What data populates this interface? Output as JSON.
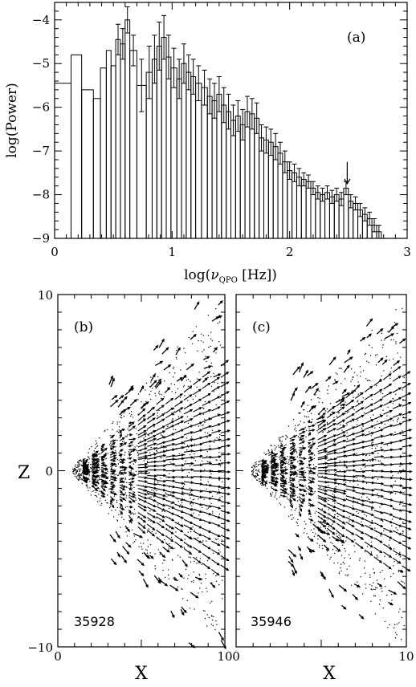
{
  "chart_data": [
    {
      "type": "bar",
      "style": "histogram-with-error-bars",
      "panel_label": "(a)",
      "title": "",
      "xlabel": "log(ν_QPO [Hz])",
      "xlabel_main": "log(",
      "xlabel_nu": "ν",
      "xlabel_sub": "QPO",
      "xlabel_tail": " [Hz])",
      "ylabel": "log(Power)",
      "xlim": [
        0,
        3
      ],
      "ylim": [
        -9,
        -3.6
      ],
      "xticks": [
        "0",
        "1",
        "2",
        "3"
      ],
      "yticks": [
        "−4",
        "−5",
        "−6",
        "−7",
        "−8",
        "−9"
      ],
      "grid": false,
      "annotation": "downward arrow at x≈2.49 marking the QPO peak",
      "arrow_x": 2.49,
      "arrow_y_top": -7.25,
      "arrow_y_tip": -7.75,
      "bins": {
        "edges": [
          0,
          0.14,
          0.23,
          0.33,
          0.39,
          0.44,
          0.48,
          0.52,
          0.56,
          0.6,
          0.64,
          0.7,
          0.78,
          0.83,
          0.87,
          0.91,
          0.95,
          0.99,
          1.04,
          1.08,
          1.12,
          1.16,
          1.2,
          1.25,
          1.3,
          1.34,
          1.38,
          1.42,
          1.46,
          1.5,
          1.54,
          1.58,
          1.62,
          1.66,
          1.7,
          1.74,
          1.78,
          1.82,
          1.86,
          1.9,
          1.94,
          1.98,
          2.02,
          2.06,
          2.1,
          2.14,
          2.18,
          2.22,
          2.26,
          2.3,
          2.34,
          2.38,
          2.42,
          2.46,
          2.5,
          2.54,
          2.58,
          2.62,
          2.66,
          2.7,
          2.74,
          2.78
        ],
        "values": [
          -5.45,
          -4.8,
          -5.6,
          -5.8,
          -5.1,
          -4.7,
          -5.05,
          -4.45,
          -4.55,
          -4.0,
          -4.7,
          -5.5,
          -5.2,
          -4.9,
          -4.6,
          -4.4,
          -4.85,
          -5.1,
          -5.35,
          -5.0,
          -5.2,
          -5.3,
          -5.45,
          -5.55,
          -5.75,
          -5.85,
          -5.7,
          -5.95,
          -6.1,
          -6.3,
          -6.2,
          -6.4,
          -6.1,
          -6.15,
          -6.25,
          -6.7,
          -6.75,
          -6.8,
          -6.9,
          -7.05,
          -7.25,
          -7.45,
          -7.5,
          -7.6,
          -7.65,
          -7.7,
          -7.85,
          -7.95,
          -8.0,
          -7.95,
          -8.05,
          -8.0,
          -8.1,
          -7.85,
          -8.15,
          -8.2,
          -8.35,
          -8.45,
          -8.55,
          -8.7,
          -8.85
        ],
        "errors": [
          0.0,
          0.0,
          0.0,
          0.0,
          0.0,
          0.0,
          0.0,
          0.35,
          0.35,
          0.3,
          0.35,
          0.6,
          0.6,
          0.55,
          0.55,
          0.5,
          0.5,
          0.45,
          0.45,
          0.45,
          0.4,
          0.4,
          0.4,
          0.4,
          0.4,
          0.4,
          0.4,
          0.4,
          0.4,
          0.35,
          0.35,
          0.35,
          0.35,
          0.35,
          0.35,
          0.3,
          0.3,
          0.3,
          0.3,
          0.25,
          0.25,
          0.2,
          0.2,
          0.2,
          0.15,
          0.15,
          0.15,
          0.15,
          0.15,
          0.15,
          0.15,
          0.15,
          0.15,
          0.15,
          0.15,
          0.15,
          0.15,
          0.15,
          0.15,
          0.15,
          0.15
        ]
      }
    },
    {
      "type": "scatter",
      "style": "velocity-vector-field",
      "panel_label": "(b)",
      "run_label": "35928",
      "xlabel": "X",
      "ylabel": "Z",
      "xlim": [
        0,
        10
      ],
      "ylim": [
        -10,
        10
      ],
      "xticks": [
        "0",
        "10"
      ],
      "yticks": [
        "10",
        "0",
        "−10"
      ],
      "seed": 35928,
      "hump": 1.4
    },
    {
      "type": "scatter",
      "style": "velocity-vector-field",
      "panel_label": "(c)",
      "run_label": "35946",
      "xlabel": "X",
      "ylabel": "",
      "xlim": [
        0,
        10
      ],
      "ylim": [
        -10,
        10
      ],
      "xticks": [
        "0",
        "10"
      ],
      "yticks": [],
      "seed": 35946,
      "hump": 1.8
    }
  ]
}
